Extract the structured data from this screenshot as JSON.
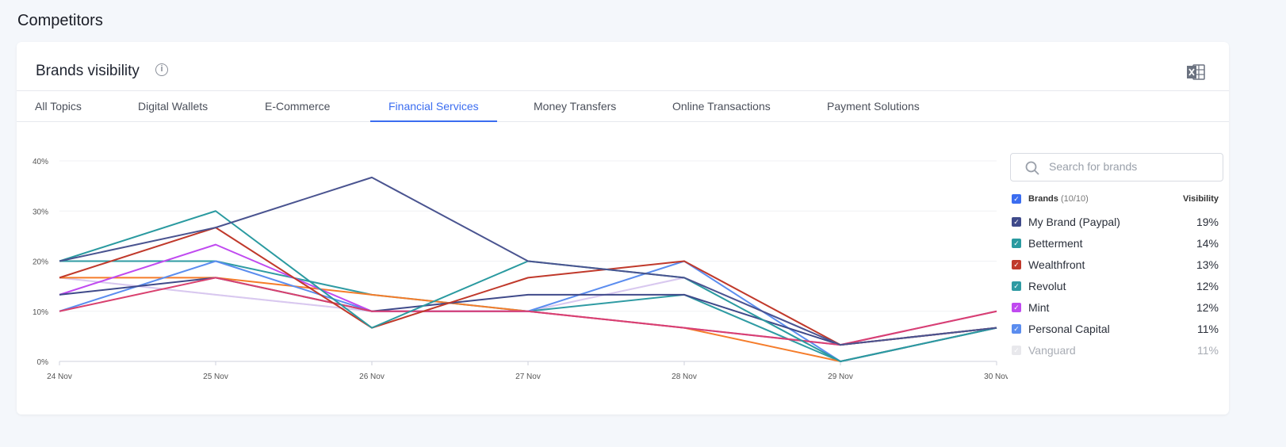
{
  "page_title": "Competitors",
  "card": {
    "title": "Brands visibility",
    "info_icon": "info-icon",
    "export_icon": "excel-icon"
  },
  "tabs": [
    {
      "label": "All Topics"
    },
    {
      "label": "Digital Wallets"
    },
    {
      "label": "E-Commerce"
    },
    {
      "label": "Financial Services",
      "active": true
    },
    {
      "label": "Money Transfers"
    },
    {
      "label": "Online Transactions"
    },
    {
      "label": "Payment Solutions"
    }
  ],
  "legend": {
    "search_placeholder": "Search for brands",
    "header_label": "Brands",
    "header_count": "(10/10)",
    "header_visibility": "Visibility",
    "items": [
      {
        "name": "My Brand (Paypal)",
        "visibility": "19%",
        "color": "#3f4a8a"
      },
      {
        "name": "Betterment",
        "visibility": "14%",
        "color": "#2a9aa0"
      },
      {
        "name": "Wealthfront",
        "visibility": "13%",
        "color": "#c0392b"
      },
      {
        "name": "Revolut",
        "visibility": "12%",
        "color": "#2f9ba3"
      },
      {
        "name": "Mint",
        "visibility": "12%",
        "color": "#c04af0"
      },
      {
        "name": "Personal Capital",
        "visibility": "11%",
        "color": "#5b8def"
      },
      {
        "name": "Vanguard",
        "visibility": "11%",
        "color": "#e8e8ec",
        "dim": true
      }
    ]
  },
  "chart_data": {
    "type": "line",
    "x": [
      "24 Nov",
      "25 Nov",
      "26 Nov",
      "27 Nov",
      "28 Nov",
      "29 Nov",
      "30 Nov"
    ],
    "yticks": [
      "0%",
      "10%",
      "20%",
      "30%",
      "40%"
    ],
    "ylim": [
      0,
      40
    ],
    "grid": true,
    "legend_placement": "right",
    "series": [
      {
        "name": "Vanguard",
        "color": "#e4e4ea",
        "values": [
          16.7,
          13.3,
          10,
          10,
          16.7,
          3.3,
          6.7
        ]
      },
      {
        "color": "#d9c8f0",
        "values": [
          16.7,
          13.3,
          10,
          10,
          16.7,
          3.3,
          6.7
        ]
      },
      {
        "name": "Revolut",
        "color": "#2f9ba3",
        "values": [
          20,
          20,
          13.3,
          10,
          13.3,
          0,
          6.7
        ]
      },
      {
        "color": "#f57c2a",
        "values": [
          16.7,
          16.7,
          13.3,
          10,
          6.7,
          0,
          6.7
        ]
      },
      {
        "name": "Personal Capital",
        "color": "#5b8def",
        "values": [
          10,
          20,
          10,
          10,
          20,
          0,
          6.7
        ]
      },
      {
        "name": "Mint",
        "color": "#c04af0",
        "values": [
          13.3,
          23.3,
          10,
          10,
          6.7,
          3.3,
          10
        ]
      },
      {
        "color": "#3f4a8a",
        "values": [
          13.3,
          16.7,
          10,
          13.3,
          13.3,
          3.3,
          6.7
        ]
      },
      {
        "color": "#d9416f",
        "values": [
          10,
          16.7,
          10,
          10,
          6.7,
          3.3,
          10
        ]
      },
      {
        "name": "Wealthfront",
        "color": "#c0392b",
        "values": [
          16.7,
          26.7,
          6.7,
          16.7,
          20,
          3.3,
          6.7
        ]
      },
      {
        "name": "Betterment",
        "color": "#2a9aa0",
        "values": [
          20,
          30,
          6.7,
          20,
          16.7,
          0,
          6.7
        ]
      },
      {
        "name": "My Brand (Paypal)",
        "color": "#4a5490",
        "values": [
          20,
          26.7,
          36.7,
          20,
          16.7,
          3.3,
          6.7
        ]
      }
    ]
  }
}
